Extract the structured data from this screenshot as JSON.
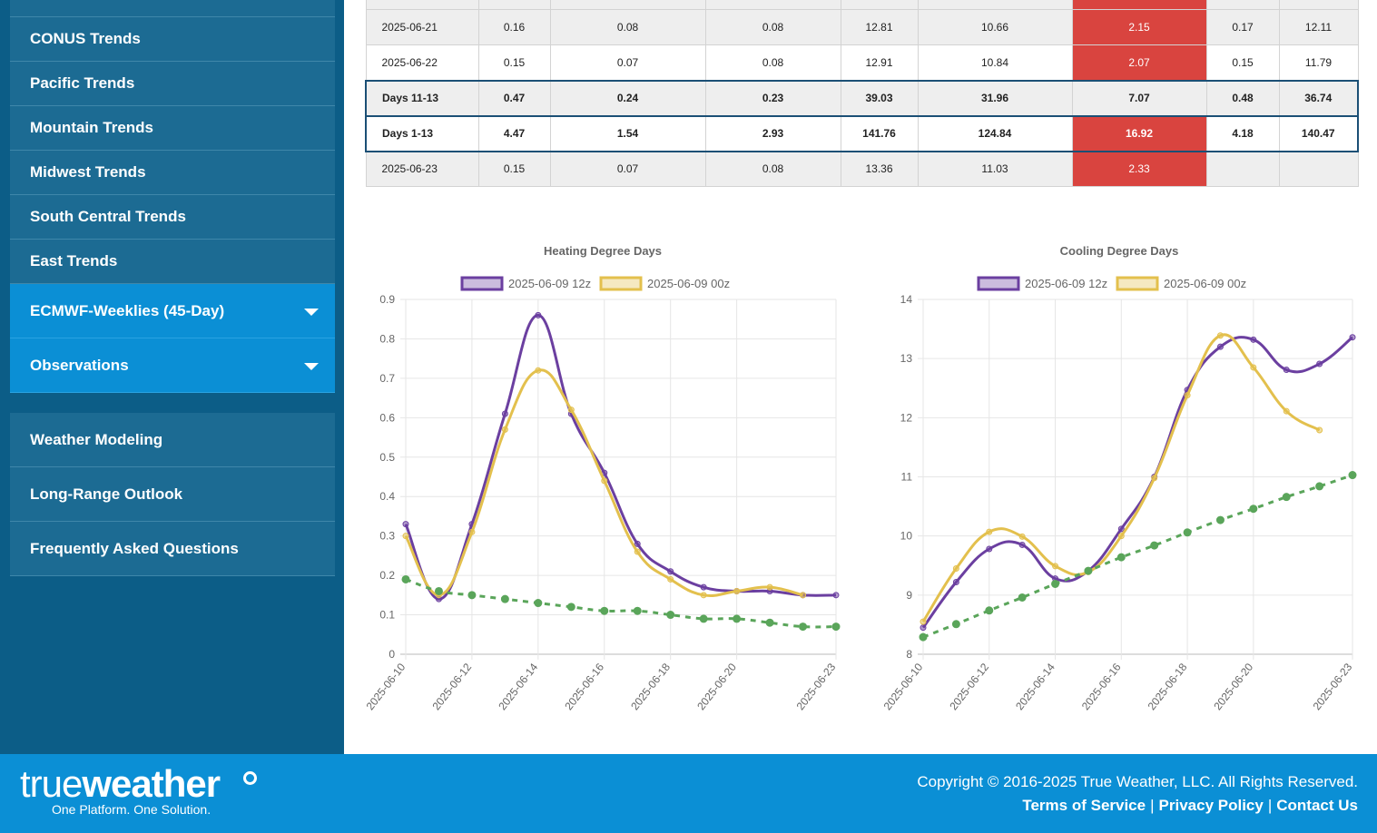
{
  "sidebar": {
    "items": [
      {
        "label": "CONUS Trends"
      },
      {
        "label": "Pacific Trends"
      },
      {
        "label": "Mountain Trends"
      },
      {
        "label": "Midwest Trends"
      },
      {
        "label": "South Central Trends"
      },
      {
        "label": "East Trends"
      }
    ],
    "expanders": [
      {
        "label": "ECMWF-Weeklies (45-Day)"
      },
      {
        "label": "Observations"
      }
    ],
    "lower_items": [
      {
        "label": "Weather Modeling"
      },
      {
        "label": "Long-Range Outlook"
      },
      {
        "label": "Frequently Asked Questions"
      }
    ]
  },
  "table": {
    "rows": [
      {
        "cells": [
          "2025-06-21",
          "0.16",
          "0.08",
          "0.08",
          "12.81",
          "10.66",
          "2.15",
          "0.17",
          "12.11"
        ]
      },
      {
        "cells": [
          "2025-06-22",
          "0.15",
          "0.07",
          "0.08",
          "12.91",
          "10.84",
          "2.07",
          "0.15",
          "11.79"
        ]
      },
      {
        "cells": [
          "Days 11-13",
          "0.47",
          "0.24",
          "0.23",
          "39.03",
          "31.96",
          "7.07",
          "0.48",
          "36.74"
        ]
      },
      {
        "cells": [
          "Days 1-13",
          "4.47",
          "1.54",
          "2.93",
          "141.76",
          "124.84",
          "16.92",
          "4.18",
          "140.47"
        ]
      },
      {
        "cells": [
          "2025-06-23",
          "0.15",
          "0.07",
          "0.08",
          "13.36",
          "11.03",
          "2.33",
          "",
          ""
        ]
      }
    ]
  },
  "colors": {
    "purple": "#6b3fa0",
    "gold": "#e3c04d",
    "green": "#5aa55a",
    "red": "#d9443f"
  },
  "chart_data": [
    {
      "type": "line",
      "title": "Heating Degree Days",
      "x": [
        "2025-06-10",
        "2025-06-11",
        "2025-06-12",
        "2025-06-13",
        "2025-06-14",
        "2025-06-15",
        "2025-06-16",
        "2025-06-17",
        "2025-06-18",
        "2025-06-19",
        "2025-06-20",
        "2025-06-21",
        "2025-06-22",
        "2025-06-23"
      ],
      "tick_labels": [
        "2025-06-10",
        "2025-06-12",
        "2025-06-14",
        "2025-06-16",
        "2025-06-18",
        "2025-06-20",
        "2025-06-23"
      ],
      "ylim": [
        0,
        0.9
      ],
      "yticks": [
        0,
        0.1,
        0.2,
        0.3,
        0.4,
        0.5,
        0.6,
        0.7,
        0.8,
        0.9
      ],
      "legend": "top",
      "series": [
        {
          "name": "2025-06-09 12z",
          "color": "#6b3fa0",
          "values": [
            0.33,
            0.14,
            0.33,
            0.61,
            0.86,
            0.61,
            0.46,
            0.28,
            0.21,
            0.17,
            0.16,
            0.16,
            0.15,
            0.15
          ]
        },
        {
          "name": "2025-06-09 00z",
          "color": "#e3c04d",
          "values": [
            0.3,
            0.15,
            0.31,
            0.57,
            0.72,
            0.62,
            0.44,
            0.26,
            0.19,
            0.15,
            0.16,
            0.17,
            0.15,
            null
          ]
        },
        {
          "name": "",
          "color": "#5aa55a",
          "dashed": true,
          "values": [
            0.19,
            0.16,
            0.15,
            0.14,
            0.13,
            0.12,
            0.11,
            0.11,
            0.1,
            0.09,
            0.09,
            0.08,
            0.07,
            0.07
          ]
        }
      ]
    },
    {
      "type": "line",
      "title": "Cooling Degree Days",
      "x": [
        "2025-06-10",
        "2025-06-11",
        "2025-06-12",
        "2025-06-13",
        "2025-06-14",
        "2025-06-15",
        "2025-06-16",
        "2025-06-17",
        "2025-06-18",
        "2025-06-19",
        "2025-06-20",
        "2025-06-21",
        "2025-06-22",
        "2025-06-23"
      ],
      "tick_labels": [
        "2025-06-10",
        "2025-06-12",
        "2025-06-14",
        "2025-06-16",
        "2025-06-18",
        "2025-06-20",
        "2025-06-23"
      ],
      "ylim": [
        8,
        14
      ],
      "yticks": [
        8,
        9,
        10,
        11,
        12,
        13,
        14
      ],
      "legend": "top",
      "series": [
        {
          "name": "2025-06-09 12z",
          "color": "#6b3fa0",
          "values": [
            8.45,
            9.22,
            9.78,
            9.85,
            9.28,
            9.41,
            10.12,
            11.0,
            12.47,
            13.2,
            13.32,
            12.81,
            12.91,
            13.36
          ]
        },
        {
          "name": "2025-06-09 00z",
          "color": "#e3c04d",
          "values": [
            8.55,
            9.45,
            10.07,
            9.99,
            9.49,
            9.39,
            10.0,
            10.98,
            12.38,
            13.39,
            12.85,
            12.11,
            11.79,
            null
          ]
        },
        {
          "name": "",
          "color": "#5aa55a",
          "dashed": true,
          "values": [
            8.29,
            8.51,
            8.74,
            8.96,
            9.19,
            9.41,
            9.64,
            9.84,
            10.06,
            10.27,
            10.46,
            10.66,
            10.84,
            11.03
          ]
        }
      ]
    }
  ],
  "footer": {
    "logo_light": "true",
    "logo_bold": "weather",
    "tagline": "One Platform. One Solution.",
    "copyright": "Copyright © 2016-2025 True Weather, LLC. All Rights Reserved.",
    "links": [
      "Terms of Service",
      "Privacy Policy",
      "Contact Us"
    ],
    "separator": "|"
  }
}
